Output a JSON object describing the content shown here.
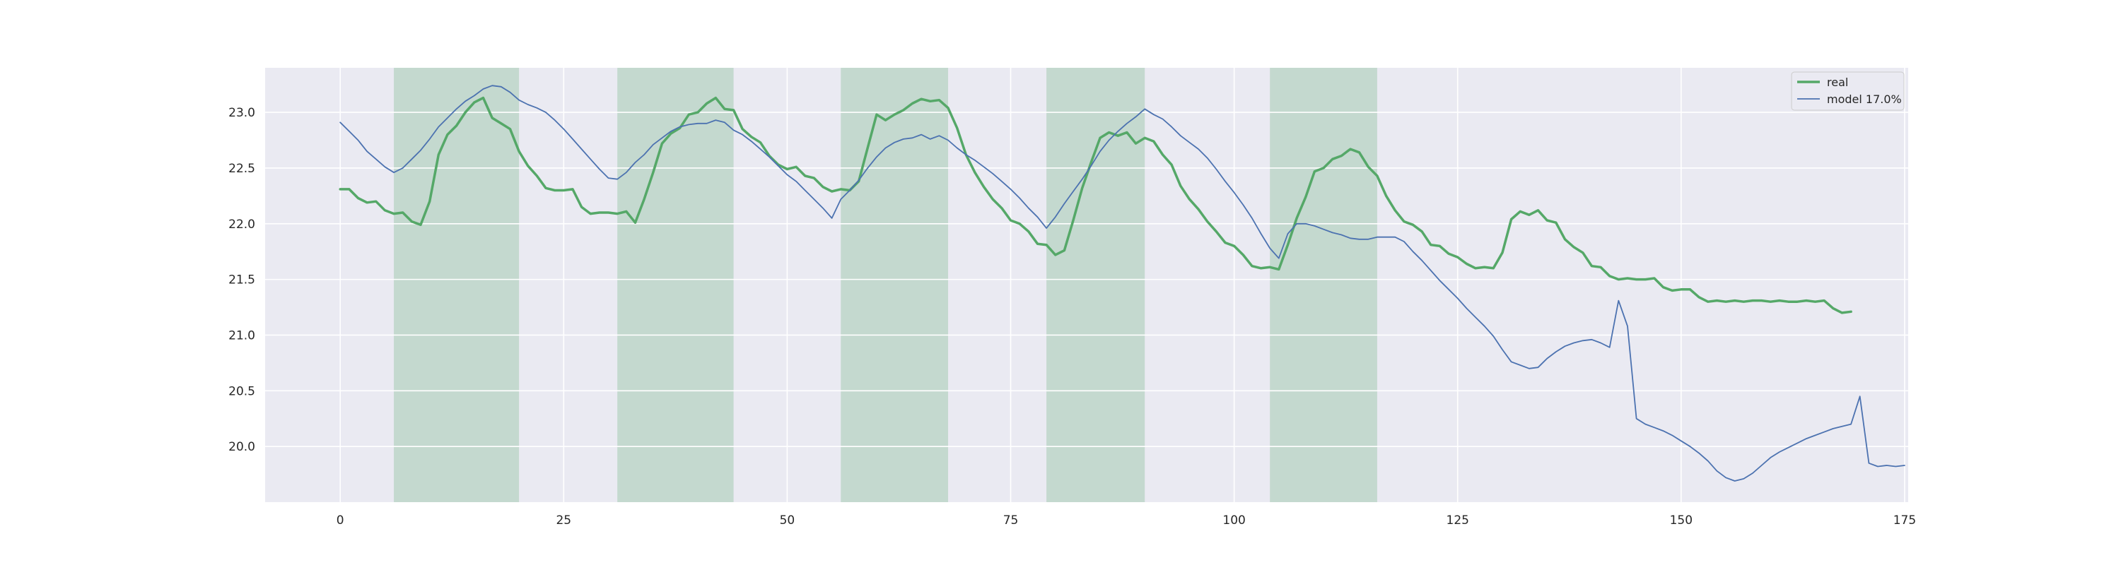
{
  "chart_data": {
    "type": "line",
    "title": "",
    "xlabel": "",
    "ylabel": "",
    "xlim": [
      -8.4,
      175.4
    ],
    "ylim": [
      19.5,
      23.4
    ],
    "xticks": [
      0,
      25,
      50,
      75,
      100,
      125,
      150,
      175
    ],
    "yticks": [
      20.0,
      20.5,
      21.0,
      21.5,
      22.0,
      22.5,
      23.0
    ],
    "grid": true,
    "legend_position": "top-right",
    "shaded_regions": [
      {
        "start": 6,
        "end": 20
      },
      {
        "start": 31,
        "end": 44
      },
      {
        "start": 56,
        "end": 68
      },
      {
        "start": 79,
        "end": 90
      },
      {
        "start": 104,
        "end": 116
      }
    ],
    "series": [
      {
        "name": "real",
        "color": "#55a868",
        "width": 3.5,
        "values": [
          22.31,
          22.31,
          22.23,
          22.19,
          22.2,
          22.12,
          22.09,
          22.1,
          22.02,
          21.99,
          22.2,
          22.62,
          22.8,
          22.88,
          23.0,
          23.09,
          23.13,
          22.95,
          22.9,
          22.85,
          22.65,
          22.52,
          22.43,
          22.32,
          22.3,
          22.3,
          22.31,
          22.15,
          22.09,
          22.1,
          22.1,
          22.09,
          22.11,
          22.01,
          22.22,
          22.46,
          22.72,
          22.81,
          22.86,
          22.98,
          23.0,
          23.08,
          23.13,
          23.03,
          23.02,
          22.85,
          22.78,
          22.73,
          22.61,
          22.53,
          22.49,
          22.51,
          22.43,
          22.41,
          22.33,
          22.29,
          22.31,
          22.3,
          22.38,
          22.68,
          22.98,
          22.93,
          22.98,
          23.02,
          23.08,
          23.12,
          23.1,
          23.11,
          23.04,
          22.86,
          22.62,
          22.46,
          22.33,
          22.22,
          22.14,
          22.03,
          22.0,
          21.93,
          21.82,
          21.81,
          21.72,
          21.76,
          22.03,
          22.32,
          22.55,
          22.77,
          22.82,
          22.79,
          22.82,
          22.72,
          22.77,
          22.74,
          22.62,
          22.53,
          22.34,
          22.22,
          22.13,
          22.02,
          21.93,
          21.83,
          21.8,
          21.72,
          21.62,
          21.6,
          21.61,
          21.59,
          21.81,
          22.05,
          22.24,
          22.47,
          22.5,
          22.58,
          22.61,
          22.67,
          22.64,
          22.51,
          22.43,
          22.25,
          22.12,
          22.02,
          21.99,
          21.93,
          21.81,
          21.8,
          21.73,
          21.7,
          21.64,
          21.6,
          21.61,
          21.6,
          21.74,
          22.04,
          22.11,
          22.08,
          22.12,
          22.03,
          22.01,
          21.86,
          21.79,
          21.74,
          21.62,
          21.61,
          21.53,
          21.5,
          21.51,
          21.5,
          21.5,
          21.51,
          21.43,
          21.4,
          21.41,
          21.41,
          21.34,
          21.3,
          21.31,
          21.3,
          21.31,
          21.3,
          21.31,
          21.31,
          21.3,
          21.31,
          21.3,
          21.3,
          21.31,
          21.3,
          21.31,
          21.24,
          21.2,
          21.21
        ]
      },
      {
        "name": "model 17.0%",
        "color": "#4c72b0",
        "width": 1.8,
        "values": [
          22.91,
          22.83,
          22.75,
          22.65,
          22.58,
          22.51,
          22.46,
          22.5,
          22.58,
          22.66,
          22.76,
          22.87,
          22.95,
          23.03,
          23.1,
          23.15,
          23.21,
          23.24,
          23.23,
          23.18,
          23.11,
          23.07,
          23.04,
          23.0,
          22.93,
          22.85,
          22.76,
          22.67,
          22.58,
          22.49,
          22.41,
          22.4,
          22.46,
          22.55,
          22.62,
          22.71,
          22.77,
          22.83,
          22.87,
          22.89,
          22.9,
          22.9,
          22.93,
          22.91,
          22.84,
          22.8,
          22.74,
          22.67,
          22.6,
          22.52,
          22.44,
          22.38,
          22.3,
          22.22,
          22.14,
          22.05,
          22.22,
          22.3,
          22.39,
          22.5,
          22.6,
          22.68,
          22.73,
          22.76,
          22.77,
          22.8,
          22.76,
          22.79,
          22.75,
          22.68,
          22.62,
          22.57,
          22.51,
          22.45,
          22.38,
          22.31,
          22.23,
          22.14,
          22.06,
          21.96,
          22.06,
          22.18,
          22.29,
          22.4,
          22.52,
          22.65,
          22.75,
          22.83,
          22.9,
          22.96,
          23.03,
          22.98,
          22.94,
          22.87,
          22.79,
          22.73,
          22.67,
          22.59,
          22.49,
          22.38,
          22.28,
          22.17,
          22.05,
          21.91,
          21.78,
          21.69,
          21.91,
          22.0,
          22.0,
          21.98,
          21.95,
          21.92,
          21.9,
          21.87,
          21.86,
          21.86,
          21.88,
          21.88,
          21.88,
          21.84,
          21.75,
          21.67,
          21.58,
          21.49,
          21.41,
          21.33,
          21.24,
          21.16,
          21.08,
          20.99,
          20.87,
          20.76,
          20.73,
          20.7,
          20.71,
          20.79,
          20.85,
          20.9,
          20.93,
          20.95,
          20.96,
          20.93,
          20.89,
          21.31,
          21.08,
          20.25,
          20.2,
          20.17,
          20.14,
          20.1,
          20.05,
          20.0,
          19.94,
          19.87,
          19.78,
          19.72,
          19.69,
          19.71,
          19.76,
          19.83,
          19.9,
          19.95,
          19.99,
          20.03,
          20.07,
          20.1,
          20.13,
          20.16,
          20.18,
          20.2,
          20.45,
          19.85,
          19.82,
          19.83,
          19.82,
          19.83
        ]
      }
    ]
  }
}
